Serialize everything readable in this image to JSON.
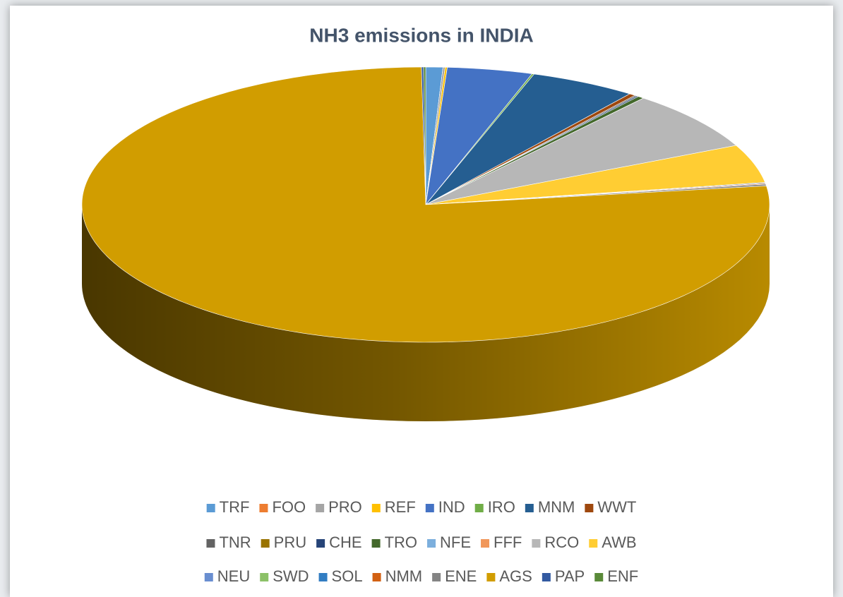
{
  "chart_data": {
    "type": "pie3d",
    "title": "NH3 emissions in INDIA",
    "categories": [
      "TRF",
      "FOO",
      "PRO",
      "REF",
      "IND",
      "IRO",
      "MNM",
      "WWT",
      "TNR",
      "PRU",
      "CHE",
      "TRO",
      "NFE",
      "FFF",
      "RCO",
      "AWB",
      "NEU",
      "SWD",
      "SOL",
      "NMM",
      "ENE",
      "AGS",
      "PAP",
      "ENF"
    ],
    "values": [
      0.8,
      0,
      0.1,
      0.1,
      4.0,
      0.1,
      5.0,
      0.3,
      0.1,
      0,
      0.1,
      0.3,
      0,
      0,
      7.0,
      4.5,
      0.1,
      0,
      0,
      0.1,
      0.2,
      76.9,
      0.1,
      0.1
    ],
    "colors": [
      "#5b9bd5",
      "#ed7d31",
      "#a5a5a5",
      "#ffc000",
      "#4472c4",
      "#70ad47",
      "#255e91",
      "#9e480e",
      "#636363",
      "#997300",
      "#264478",
      "#43682b",
      "#7cafdd",
      "#f1975a",
      "#b7b7b7",
      "#ffcd33",
      "#698ed0",
      "#8cc168",
      "#327dc2",
      "#d26012",
      "#848484",
      "#d19d00",
      "#335aa1",
      "#5a8a39"
    ],
    "legend": "bottom"
  }
}
